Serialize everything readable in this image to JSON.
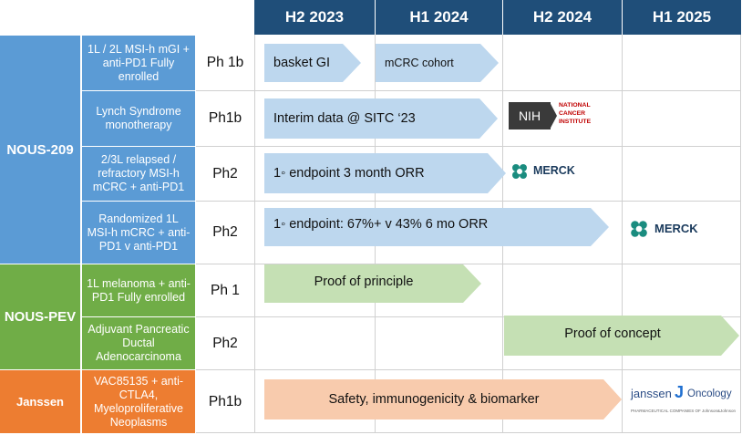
{
  "header": {
    "periods": [
      "H2 2023",
      "H1 2024",
      "H2 2024",
      "H1 2025"
    ]
  },
  "colors": {
    "header_bg": "#1f4e79",
    "nous209": "#5b9bd5",
    "nous209_indication": "#5b9bd5",
    "nouspev": "#70ad47",
    "janssen": "#ed7d31",
    "arrow_blue": "#bdd7ee",
    "arrow_green": "#c5e0b4",
    "arrow_orange": "#f8cbad"
  },
  "programs": [
    {
      "name": "NOUS-209"
    },
    {
      "name": "NOUS-PEV"
    },
    {
      "name": "Janssen"
    }
  ],
  "rows": [
    {
      "indication": "1L / 2L MSI-h mGI + anti-PD1 Fully enrolled",
      "phase": "Ph 1b",
      "arrows": [
        "basket GI",
        "mCRC cohort"
      ]
    },
    {
      "indication": "Lynch Syndrome monotherapy",
      "phase": "Ph1b",
      "arrows": [
        "Interim data @ SITC ‘23"
      ],
      "logo": "NIH NATIONAL CANCER INSTITUTE"
    },
    {
      "indication": "2/3L relapsed / refractory MSI-h mCRC + anti-PD1",
      "phase": "Ph2",
      "arrows": [
        "1◦ endpoint 3 month ORR"
      ],
      "logo": "MERCK"
    },
    {
      "indication": "Randomized 1L MSI-h mCRC + anti-PD1 v anti-PD1",
      "phase": "Ph2",
      "arrows": [
        "1◦ endpoint: 67%+ v 43% 6 mo ORR"
      ],
      "logo": "MERCK"
    },
    {
      "indication": "1L melanoma + anti-PD1 Fully enrolled",
      "phase": "Ph 1",
      "arrows": [
        "Proof of principle"
      ]
    },
    {
      "indication": "Adjuvant Pancreatic Ductal Adenocarcinoma",
      "phase": "Ph2",
      "arrows": [
        "Proof of concept"
      ]
    },
    {
      "indication": "VAC85135 + anti-CTLA4, Myeloproliferative Neoplasms",
      "phase": "Ph1b",
      "arrows": [
        "Safety, immunogenicity & biomarker"
      ],
      "logo": "janssen Oncology"
    }
  ],
  "logos": {
    "nih_short": "NIH",
    "nih_long_1": "NATIONAL",
    "nih_long_2": "CANCER",
    "nih_long_3": "INSTITUTE",
    "merck": "MERCK",
    "janssen": "janssen",
    "janssen_sub": "Oncology",
    "janssen_tag": "PHARMACEUTICAL COMPANIES OF Johnson&Johnson"
  }
}
